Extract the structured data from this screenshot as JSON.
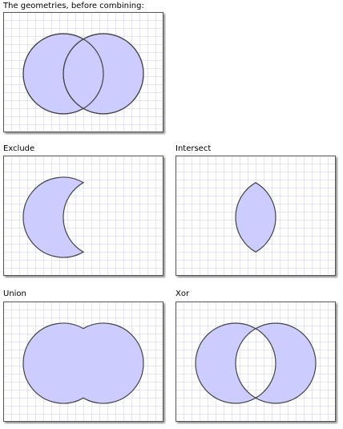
{
  "labels": {
    "before": "The geometries, before combining:",
    "exclude": "Exclude",
    "intersect": "Intersect",
    "union": "Union",
    "xor": "Xor"
  },
  "colors": {
    "fill": "#ccccff",
    "stroke": "#444444",
    "grid": "#c8c8ee",
    "background": "#ffffff"
  }
}
